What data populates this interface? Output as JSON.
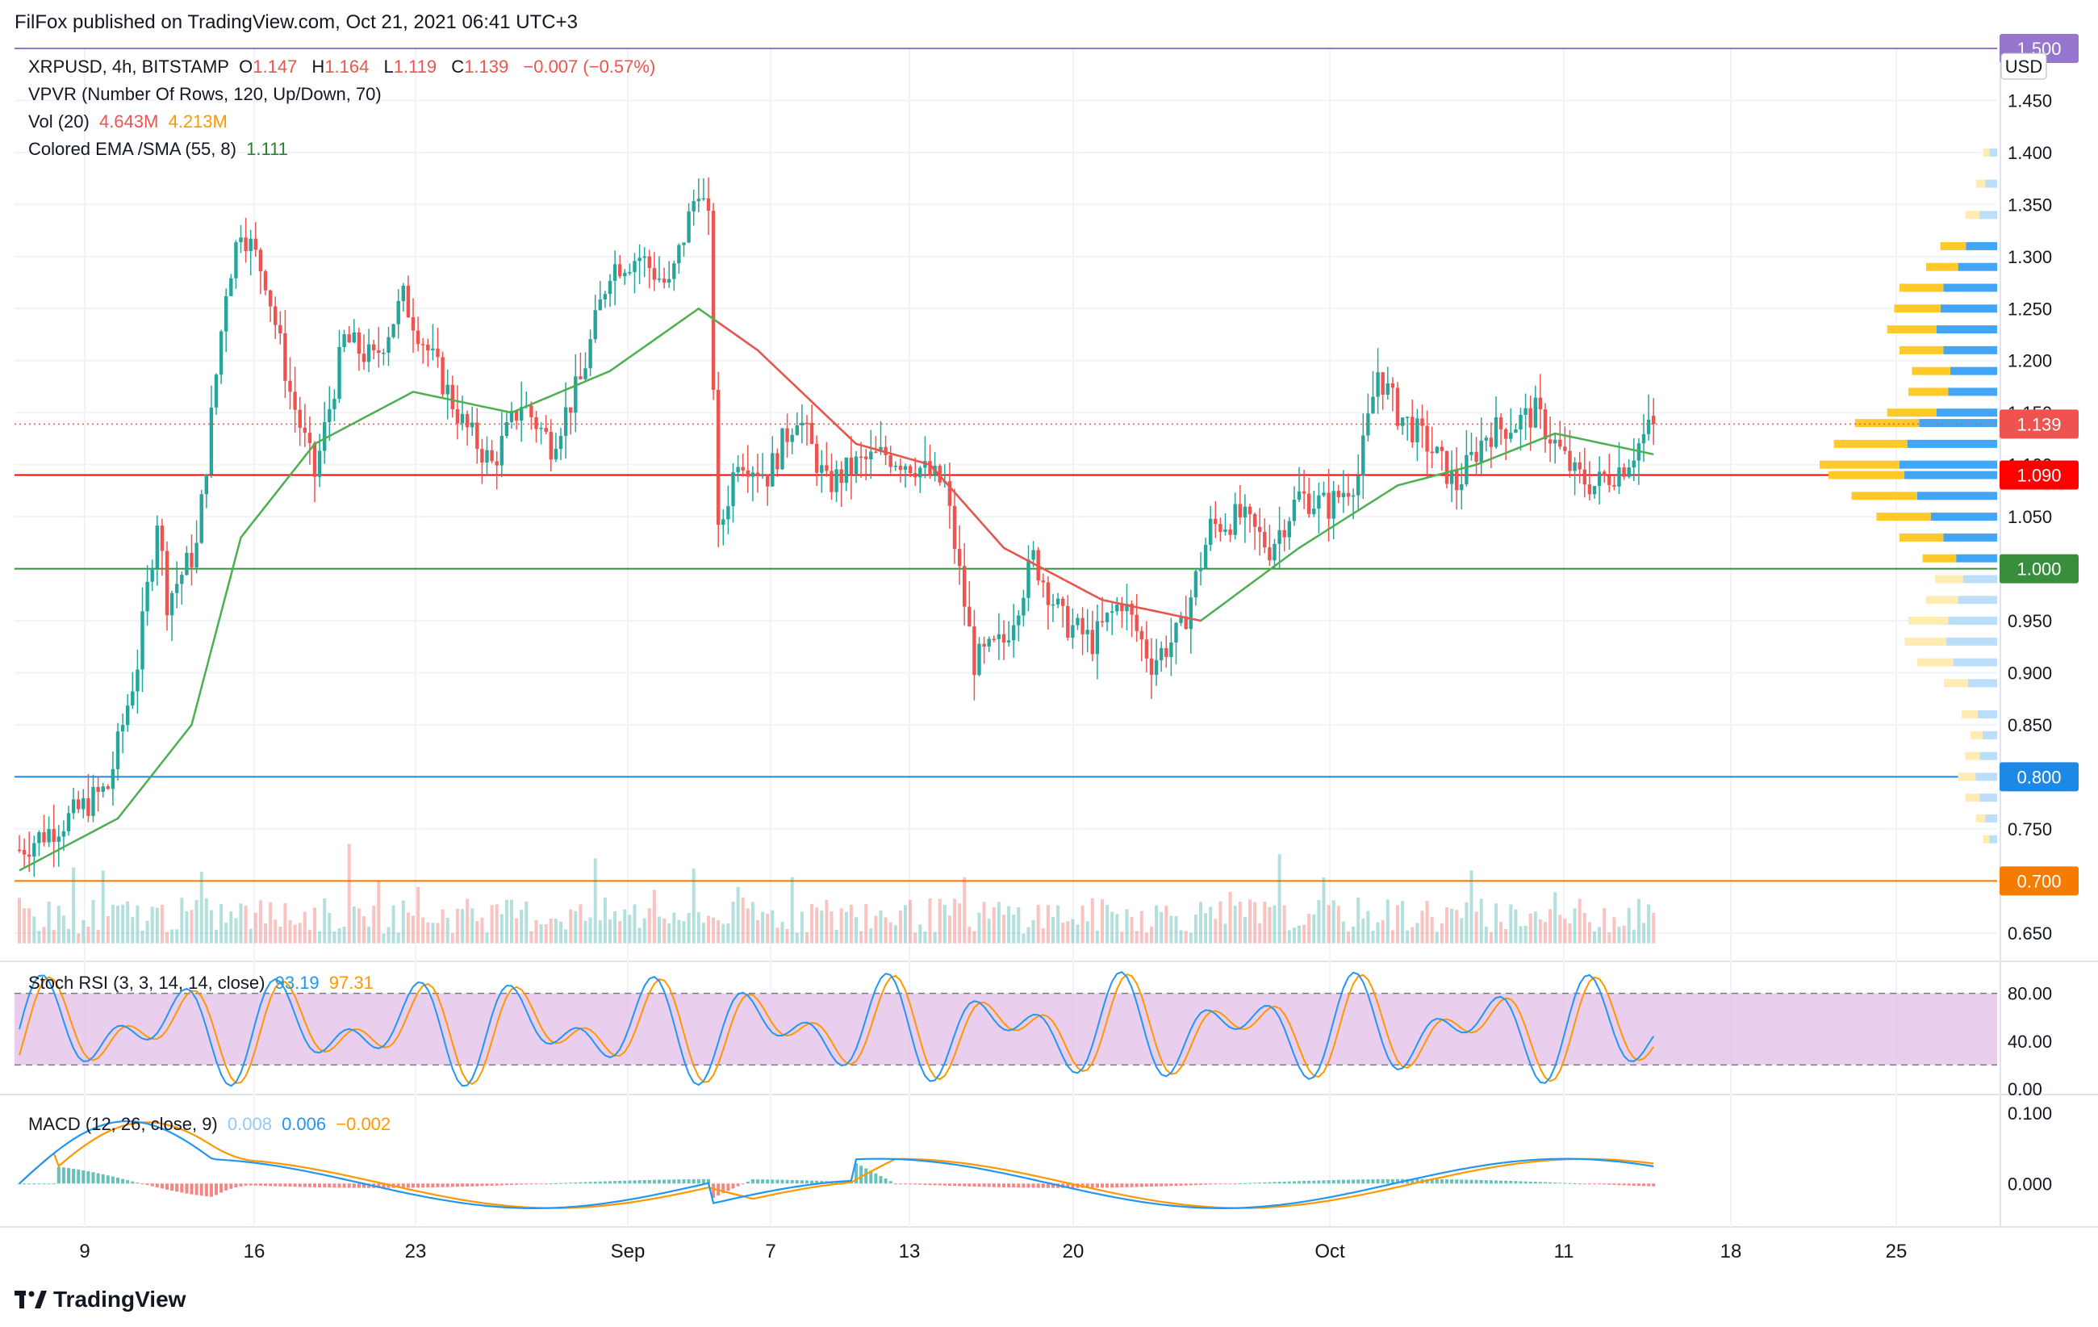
{
  "header": {
    "published": "FilFox published on TradingView.com, Oct 21, 2021 06:41 UTC+3"
  },
  "legend": {
    "symbol": "XRPUSD, 4h, BITSTAMP",
    "o_label": "O",
    "o": "1.147",
    "h_label": "H",
    "h": "1.164",
    "l_label": "L",
    "l": "1.119",
    "c_label": "C",
    "c": "1.139",
    "change": "−0.007 (−0.57%)",
    "vpvr": "VPVR (Number Of Rows, 120, Up/Down, 70)",
    "vol_label": "Vol (20)",
    "vol1": "4.643M",
    "vol2": "4.213M",
    "ema_label": "Colored EMA /SMA (55, 8)",
    "ema_value": "1.111",
    "stoch_label": "Stoch RSI (3, 3, 14, 14, close)",
    "stoch_k": "93.19",
    "stoch_d": "97.31",
    "macd_label": "MACD (12, 26, close, 9)",
    "macd_hist": "0.008",
    "macd_line": "0.006",
    "macd_signal": "−0.002"
  },
  "brand": {
    "name": "TradingView"
  },
  "colors": {
    "up": "#26a69a",
    "down": "#ef5350",
    "ema": "#ef5350",
    "ema_green": "#4caf50",
    "stoch_bg": "#e1bee7",
    "k": "#2196f3",
    "d": "#ff9800"
  },
  "chart_data": {
    "type": "candlestick",
    "currency": "USD",
    "y_ticks": [
      "1.450",
      "1.400",
      "1.350",
      "1.300",
      "1.250",
      "1.200",
      "1.150",
      "1.100",
      "1.050",
      "1.000",
      "0.950",
      "0.900",
      "0.850",
      "0.800",
      "0.750",
      "0.700",
      "0.650"
    ],
    "x_labels": [
      "9",
      "16",
      "23",
      "Sep",
      "7",
      "13",
      "20",
      "Oct",
      "11",
      "18",
      "25"
    ],
    "horizontal_levels": [
      {
        "value": 1.5,
        "label": "1.500",
        "color": "#9575cd"
      },
      {
        "value": 1.09,
        "label": "1.090",
        "color": "#ff0000"
      },
      {
        "value": 1.0,
        "label": "1.000",
        "color": "#388e3c"
      },
      {
        "value": 0.8,
        "label": "0.800",
        "color": "#1e88e5"
      },
      {
        "value": 0.7,
        "label": "0.700",
        "color": "#f57c00"
      }
    ],
    "last_price": {
      "value": 1.139,
      "label": "1.139"
    },
    "price_path": [
      [
        0,
        0.73
      ],
      [
        10,
        0.76
      ],
      [
        18,
        0.79
      ],
      [
        24,
        0.91
      ],
      [
        28,
        1.05
      ],
      [
        30,
        0.97
      ],
      [
        36,
        1.02
      ],
      [
        42,
        1.27
      ],
      [
        45,
        1.33
      ],
      [
        50,
        1.28
      ],
      [
        55,
        1.17
      ],
      [
        60,
        1.09
      ],
      [
        66,
        1.22
      ],
      [
        72,
        1.2
      ],
      [
        78,
        1.26
      ],
      [
        84,
        1.2
      ],
      [
        90,
        1.14
      ],
      [
        96,
        1.1
      ],
      [
        102,
        1.16
      ],
      [
        108,
        1.12
      ],
      [
        114,
        1.18
      ],
      [
        120,
        1.29
      ],
      [
        126,
        1.3
      ],
      [
        132,
        1.27
      ],
      [
        138,
        1.37
      ],
      [
        140,
        1.33
      ],
      [
        142,
        1.03
      ],
      [
        146,
        1.11
      ],
      [
        152,
        1.09
      ],
      [
        158,
        1.15
      ],
      [
        164,
        1.08
      ],
      [
        170,
        1.1
      ],
      [
        176,
        1.11
      ],
      [
        182,
        1.1
      ],
      [
        188,
        1.08
      ],
      [
        194,
        0.91
      ],
      [
        200,
        0.93
      ],
      [
        206,
        1.01
      ],
      [
        212,
        0.95
      ],
      [
        218,
        0.93
      ],
      [
        224,
        0.97
      ],
      [
        230,
        0.91
      ],
      [
        236,
        0.94
      ],
      [
        242,
        1.04
      ],
      [
        248,
        1.05
      ],
      [
        254,
        1.02
      ],
      [
        260,
        1.07
      ],
      [
        266,
        1.06
      ],
      [
        272,
        1.09
      ],
      [
        276,
        1.19
      ],
      [
        280,
        1.15
      ],
      [
        286,
        1.12
      ],
      [
        292,
        1.08
      ],
      [
        298,
        1.13
      ],
      [
        304,
        1.14
      ],
      [
        308,
        1.15
      ],
      [
        312,
        1.12
      ],
      [
        316,
        1.09
      ],
      [
        320,
        1.08
      ],
      [
        326,
        1.1
      ],
      [
        332,
        1.14
      ]
    ],
    "ema_path": [
      [
        0,
        0.71
      ],
      [
        20,
        0.76
      ],
      [
        35,
        0.85
      ],
      [
        45,
        1.03
      ],
      [
        60,
        1.12
      ],
      [
        80,
        1.17
      ],
      [
        100,
        1.15
      ],
      [
        120,
        1.19
      ],
      [
        138,
        1.25
      ],
      [
        150,
        1.21
      ],
      [
        170,
        1.12
      ],
      [
        185,
        1.1
      ],
      [
        200,
        1.02
      ],
      [
        220,
        0.97
      ],
      [
        240,
        0.95
      ],
      [
        260,
        1.02
      ],
      [
        280,
        1.08
      ],
      [
        296,
        1.1
      ],
      [
        312,
        1.13
      ],
      [
        332,
        1.11
      ]
    ],
    "vpvr_bins": [
      [
        1.4,
        0.08
      ],
      [
        1.37,
        0.12
      ],
      [
        1.34,
        0.18
      ],
      [
        1.31,
        0.32
      ],
      [
        1.29,
        0.4
      ],
      [
        1.27,
        0.55
      ],
      [
        1.25,
        0.58
      ],
      [
        1.23,
        0.62
      ],
      [
        1.21,
        0.55
      ],
      [
        1.19,
        0.48
      ],
      [
        1.17,
        0.5
      ],
      [
        1.15,
        0.62
      ],
      [
        1.14,
        0.8
      ],
      [
        1.12,
        0.92
      ],
      [
        1.1,
        1.0
      ],
      [
        1.09,
        0.95
      ],
      [
        1.07,
        0.82
      ],
      [
        1.05,
        0.68
      ],
      [
        1.03,
        0.55
      ],
      [
        1.01,
        0.42
      ],
      [
        0.99,
        0.35
      ],
      [
        0.97,
        0.4
      ],
      [
        0.95,
        0.5
      ],
      [
        0.93,
        0.52
      ],
      [
        0.91,
        0.45
      ],
      [
        0.89,
        0.3
      ],
      [
        0.86,
        0.2
      ],
      [
        0.84,
        0.15
      ],
      [
        0.82,
        0.18
      ],
      [
        0.8,
        0.22
      ],
      [
        0.78,
        0.18
      ],
      [
        0.76,
        0.12
      ],
      [
        0.74,
        0.08
      ]
    ],
    "stoch_rsi": {
      "levels": [
        80,
        20
      ],
      "y_ticks": [
        "80.00",
        "40.00",
        "0.00"
      ]
    },
    "macd": {
      "y_ticks": [
        "0.100",
        "0.000"
      ]
    }
  }
}
